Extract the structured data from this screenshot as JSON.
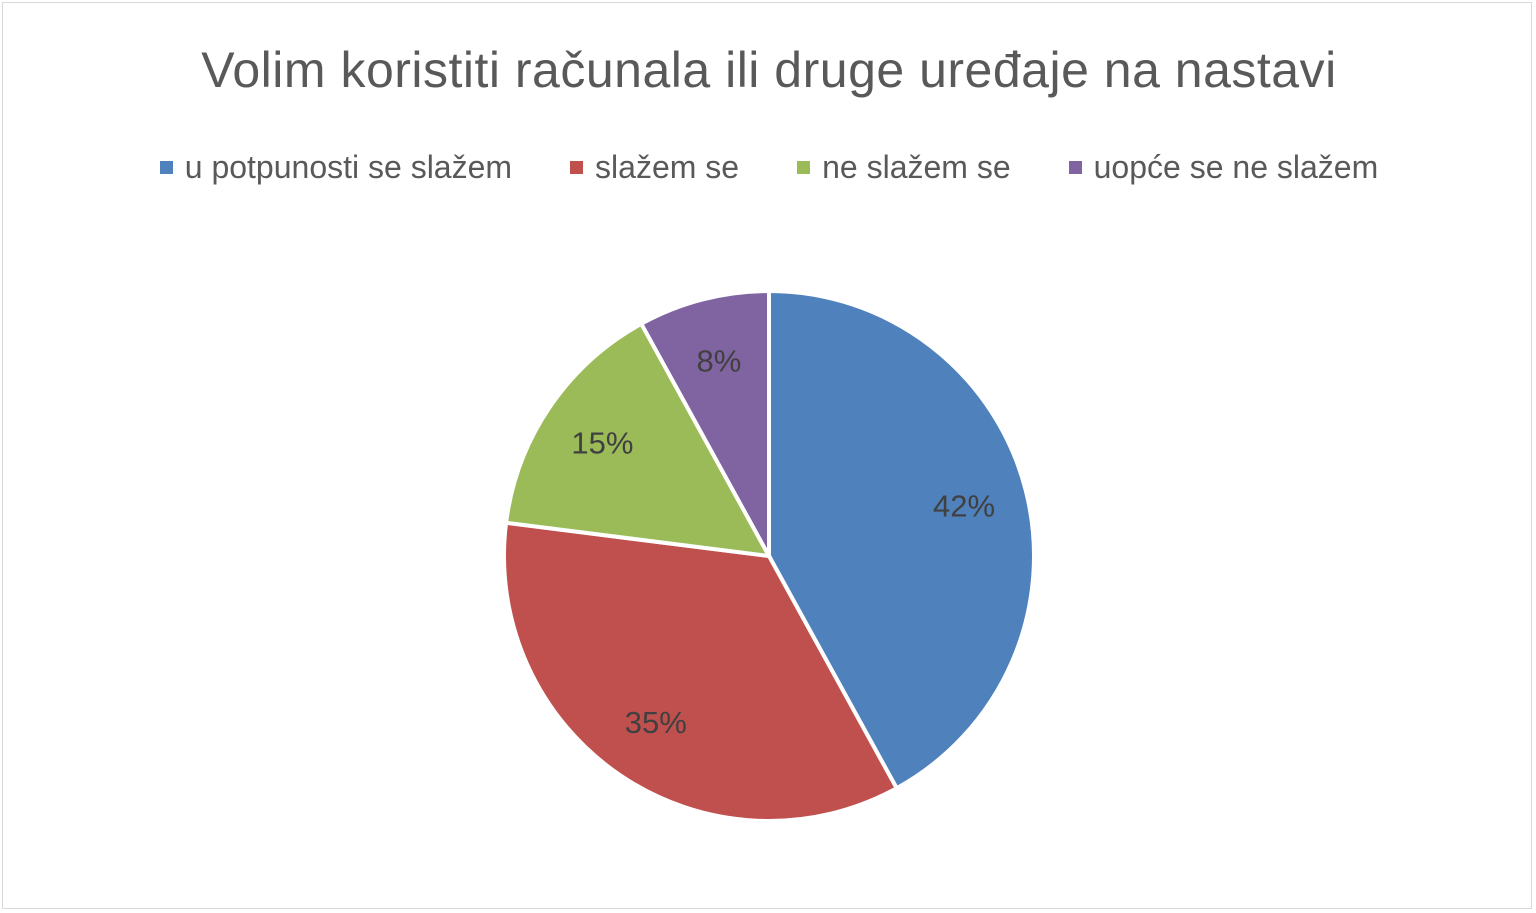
{
  "chart_data": {
    "type": "pie",
    "title": "Volim koristiti računala ili druge uređaje na nastavi",
    "legend_position": "top",
    "slices": [
      {
        "name": "u potpunosti se slažem",
        "value": 42,
        "label": "42%",
        "color": "#4f81bd"
      },
      {
        "name": "slažem se",
        "value": 35,
        "label": "35%",
        "color": "#c0504d"
      },
      {
        "name": "ne slažem se",
        "value": 15,
        "label": "15%",
        "color": "#9bbb59"
      },
      {
        "name": "uopće se ne slažem",
        "value": 8,
        "label": "8%",
        "color": "#8064a2"
      }
    ]
  }
}
